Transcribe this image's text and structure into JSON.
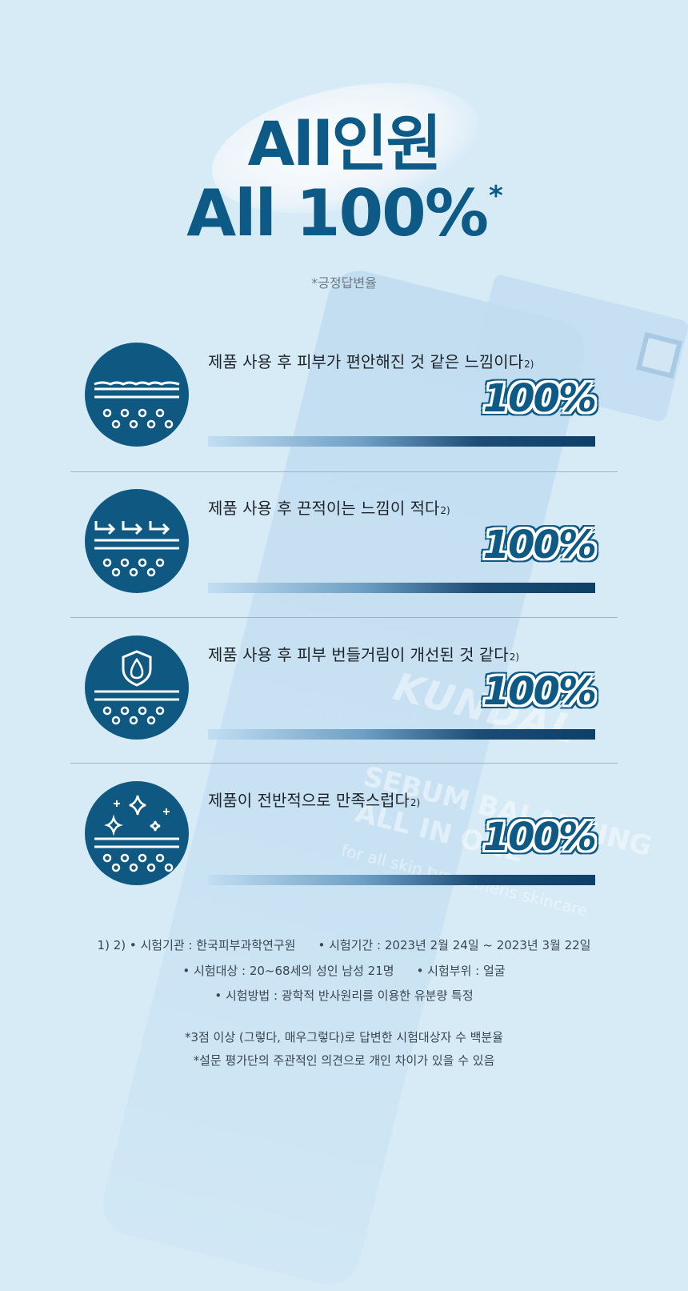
{
  "headline": {
    "line1": "All인원",
    "line2": "All 100%",
    "star": "*"
  },
  "note": "*긍정답변율",
  "bottle": {
    "brand": "KUNDAL",
    "line1": "SEBUM BALANCING",
    "line2": "ALL IN ONE",
    "line3": "for all skin types  mens skincare"
  },
  "items": [
    {
      "statement": "제품 사용 후 피부가 편안해진 것 같은 느낌이다",
      "ref": "2)",
      "percent": "100%",
      "value": 100,
      "icon": "skin-calm-icon"
    },
    {
      "statement": "제품 사용 후 끈적이는 느낌이 적다",
      "ref": "2)",
      "percent": "100%",
      "value": 100,
      "icon": "absorb-arrows-icon"
    },
    {
      "statement": "제품 사용 후 피부 번들거림이 개선된 것 같다",
      "ref": "2)",
      "percent": "100%",
      "value": 100,
      "icon": "shield-drop-icon"
    },
    {
      "statement": "제품이 전반적으로 만족스럽다",
      "ref": "2)",
      "percent": "100%",
      "value": 100,
      "icon": "sparkle-icon"
    }
  ],
  "footnotes": {
    "row1a": "1) 2) • 시험기관 : 한국피부과학연구원",
    "row1b": "• 시험기간 : 2023년 2월 24일 ~ 2023년 3월 22일",
    "row2a": "• 시험대상 : 20~68세의 성인 남성 21명",
    "row2b": "• 시험부위 : 얼굴",
    "row3": "• 시험방법 : 광학적 반사원리를 이용한 유분량 특정",
    "note1": "*3점 이상 (그렇다, 매우그렇다)로 답변한 시험대상자 수 백분율",
    "note2": "*설문 평가단의 주관적인 의견으로 개인 차이가 있을 수 있음"
  },
  "colors": {
    "background": "#d7ebf7",
    "accent": "#0d5a86"
  }
}
